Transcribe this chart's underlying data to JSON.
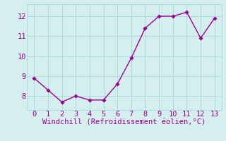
{
  "x": [
    0,
    1,
    2,
    3,
    4,
    5,
    6,
    7,
    8,
    9,
    10,
    11,
    12,
    13
  ],
  "y": [
    8.9,
    8.3,
    7.7,
    8.0,
    7.8,
    7.8,
    8.6,
    9.9,
    11.4,
    12.0,
    12.0,
    12.2,
    10.9,
    11.9
  ],
  "line_color": "#990099",
  "marker_color": "#990099",
  "bg_color": "#d5eeee",
  "grid_color": "#aadddd",
  "xlabel": "Windchill (Refroidissement éolien,°C)",
  "xlabel_color": "#990099",
  "xlim": [
    -0.5,
    13.5
  ],
  "ylim": [
    7.3,
    12.6
  ],
  "yticks": [
    8,
    9,
    10,
    11,
    12
  ],
  "xticks": [
    0,
    1,
    2,
    3,
    4,
    5,
    6,
    7,
    8,
    9,
    10,
    11,
    12,
    13
  ],
  "tick_color": "#990099",
  "marker_size": 2.8,
  "line_width": 1.0,
  "tick_fontsize": 7.5,
  "xlabel_fontsize": 7.5
}
